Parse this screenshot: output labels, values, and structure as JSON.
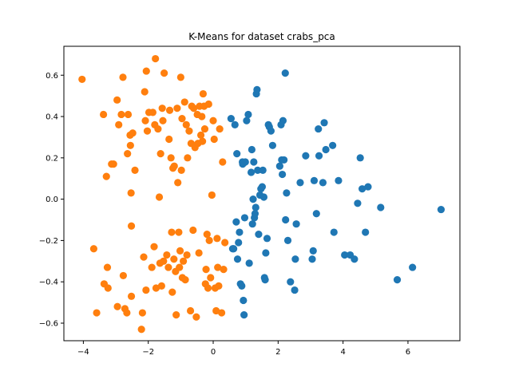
{
  "chart_data": {
    "type": "scatter",
    "title": "K-Means for dataset crabs_pca",
    "xlabel": "",
    "ylabel": "",
    "xlim": [
      -4.6,
      7.6
    ],
    "ylim": [
      -0.685,
      0.74
    ],
    "xticks": [
      -4,
      -2,
      0,
      2,
      4,
      6
    ],
    "yticks": [
      -0.6,
      -0.4,
      -0.2,
      0.0,
      0.2,
      0.4,
      0.6
    ],
    "yticks_labels": [
      "−0.6",
      "−0.4",
      "−0.2",
      "0.0",
      "0.2",
      "0.4",
      "0.6"
    ],
    "xticks_labels": [
      "−4",
      "−2",
      "0",
      "2",
      "4",
      "6"
    ],
    "grid": false,
    "legend": "none",
    "series": [
      {
        "color": "#ff7f0e",
        "points": [
          [
            -4.04,
            0.58
          ],
          [
            -3.68,
            -0.24
          ],
          [
            -3.59,
            -0.55
          ],
          [
            -3.38,
            0.41
          ],
          [
            -3.36,
            -0.41
          ],
          [
            -3.29,
            0.11
          ],
          [
            -3.26,
            -0.33
          ],
          [
            -3.24,
            -0.43
          ],
          [
            -3.13,
            0.17
          ],
          [
            -3.07,
            0.17
          ],
          [
            -2.96,
            0.48
          ],
          [
            -2.95,
            -0.52
          ],
          [
            -2.91,
            0.36
          ],
          [
            -2.83,
            0.41
          ],
          [
            -2.78,
            0.59
          ],
          [
            -2.77,
            -0.37
          ],
          [
            -2.72,
            -0.53
          ],
          [
            -2.66,
            -0.55
          ],
          [
            -2.64,
            0.22
          ],
          [
            -2.62,
            0.41
          ],
          [
            -2.56,
            0.31
          ],
          [
            -2.55,
            0.26
          ],
          [
            -2.53,
            0.03
          ],
          [
            -2.52,
            -0.13
          ],
          [
            -2.52,
            -0.47
          ],
          [
            -2.48,
            0.32
          ],
          [
            -2.41,
            0.14
          ],
          [
            -2.21,
            -0.63
          ],
          [
            -2.18,
            -0.55
          ],
          [
            -2.14,
            -0.28
          ],
          [
            -2.11,
            0.52
          ],
          [
            -2.09,
            0.38
          ],
          [
            -2.07,
            -0.44
          ],
          [
            -2.06,
            0.62
          ],
          [
            -2.03,
            0.33
          ],
          [
            -1.98,
            0.42
          ],
          [
            -1.89,
            -0.33
          ],
          [
            -1.86,
            0.42
          ],
          [
            -1.82,
            -0.23
          ],
          [
            -1.8,
            0.36
          ],
          [
            -1.78,
            0.68
          ],
          [
            -1.76,
            -0.43
          ],
          [
            -1.7,
            0.34
          ],
          [
            -1.66,
            0.01
          ],
          [
            -1.64,
            -0.31
          ],
          [
            -1.62,
            0.22
          ],
          [
            -1.59,
            -0.42
          ],
          [
            -1.57,
            0.44
          ],
          [
            -1.55,
            0.38
          ],
          [
            -1.53,
            -0.3
          ],
          [
            -1.51,
            0.61
          ],
          [
            -1.43,
            -0.27
          ],
          [
            -1.38,
            -0.33
          ],
          [
            -1.36,
            0.29
          ],
          [
            -1.34,
            0.43
          ],
          [
            -1.3,
            0.2
          ],
          [
            -1.28,
            -0.16
          ],
          [
            -1.26,
            -0.45
          ],
          [
            -1.24,
            0.15
          ],
          [
            -1.21,
            -0.29
          ],
          [
            -1.2,
            0.16
          ],
          [
            -1.16,
            -0.35
          ],
          [
            -1.14,
            -0.56
          ],
          [
            -1.11,
            0.44
          ],
          [
            -1.09,
            0.08
          ],
          [
            -1.06,
            -0.16
          ],
          [
            -1.04,
            -0.33
          ],
          [
            -1.02,
            -0.25
          ],
          [
            -1.0,
            0.59
          ],
          [
            -0.98,
            0.14
          ],
          [
            -0.96,
            0.39
          ],
          [
            -0.95,
            -0.38
          ],
          [
            -0.92,
            -0.3
          ],
          [
            -0.88,
            0.47
          ],
          [
            -0.86,
            -0.39
          ],
          [
            -0.83,
            0.36
          ],
          [
            -0.81,
            -0.27
          ],
          [
            -0.79,
            0.2
          ],
          [
            -0.74,
            0.33
          ],
          [
            -0.7,
            -0.54
          ],
          [
            -0.68,
            0.27
          ],
          [
            -0.66,
            0.45
          ],
          [
            -0.62,
            -0.15
          ],
          [
            -0.6,
            0.44
          ],
          [
            -0.56,
            0.25
          ],
          [
            -0.52,
            -0.57
          ],
          [
            -0.49,
            0.41
          ],
          [
            -0.47,
            0.27
          ],
          [
            -0.44,
            -0.26
          ],
          [
            -0.42,
            0.45
          ],
          [
            -0.38,
            0.31
          ],
          [
            -0.35,
            0.4
          ],
          [
            -0.33,
            0.28
          ],
          [
            -0.31,
            0.51
          ],
          [
            -0.28,
            0.45
          ],
          [
            -0.26,
            0.34
          ],
          [
            -0.24,
            -0.41
          ],
          [
            -0.22,
            -0.34
          ],
          [
            -0.19,
            -0.17
          ],
          [
            -0.16,
            -0.43
          ],
          [
            -0.14,
            0.46
          ],
          [
            -0.12,
            -0.2
          ],
          [
            -0.08,
            -0.38
          ],
          [
            -0.04,
            0.02
          ],
          [
            0.0,
            0.38
          ],
          [
            0.03,
            0.29
          ],
          [
            0.06,
            -0.43
          ],
          [
            0.09,
            -0.54
          ],
          [
            0.12,
            -0.19
          ],
          [
            0.14,
            -0.33
          ],
          [
            0.17,
            -0.42
          ],
          [
            0.2,
            0.34
          ],
          [
            0.26,
            -0.55
          ],
          [
            0.29,
            0.18
          ],
          [
            0.32,
            -0.34
          ],
          [
            0.36,
            -0.21
          ]
        ]
      },
      {
        "color": "#1f77b4",
        "points": [
          [
            0.55,
            0.39
          ],
          [
            0.6,
            -0.24
          ],
          [
            0.63,
            -0.24
          ],
          [
            0.67,
            0.36
          ],
          [
            0.71,
            -0.11
          ],
          [
            0.73,
            0.22
          ],
          [
            0.75,
            -0.29
          ],
          [
            0.78,
            -0.21
          ],
          [
            0.81,
            -0.16
          ],
          [
            0.84,
            -0.41
          ],
          [
            0.88,
            -0.42
          ],
          [
            0.9,
            0.18
          ],
          [
            0.91,
            0.17
          ],
          [
            0.93,
            -0.49
          ],
          [
            0.95,
            -0.56
          ],
          [
            0.97,
            -0.09
          ],
          [
            0.99,
            0.18
          ],
          [
            1.03,
            0.38
          ],
          [
            1.08,
            0.41
          ],
          [
            1.11,
            -0.31
          ],
          [
            1.17,
            0.13
          ],
          [
            1.19,
            0.24
          ],
          [
            1.21,
            -0.12
          ],
          [
            1.23,
            0.0
          ],
          [
            1.25,
            0.18
          ],
          [
            1.27,
            -0.09
          ],
          [
            1.29,
            -0.07
          ],
          [
            1.31,
            -0.04
          ],
          [
            1.33,
            0.51
          ],
          [
            1.35,
            0.53
          ],
          [
            1.37,
            0.14
          ],
          [
            1.4,
            -0.17
          ],
          [
            1.44,
            0.02
          ],
          [
            1.47,
            0.05
          ],
          [
            1.51,
            0.06
          ],
          [
            1.53,
            0.14
          ],
          [
            1.56,
            0.01
          ],
          [
            1.58,
            -0.38
          ],
          [
            1.6,
            -0.39
          ],
          [
            1.62,
            -0.26
          ],
          [
            1.66,
            -0.19
          ],
          [
            1.7,
            0.36
          ],
          [
            1.73,
            0.35
          ],
          [
            1.78,
            0.33
          ],
          [
            1.83,
            0.26
          ],
          [
            2.05,
            0.16
          ],
          [
            2.09,
            0.36
          ],
          [
            2.11,
            0.19
          ],
          [
            2.13,
            0.12
          ],
          [
            2.15,
            0.38
          ],
          [
            2.18,
            0.19
          ],
          [
            2.22,
            0.61
          ],
          [
            2.23,
            -0.1
          ],
          [
            2.26,
            0.03
          ],
          [
            2.3,
            -0.2
          ],
          [
            2.38,
            -0.4
          ],
          [
            2.51,
            -0.44
          ],
          [
            2.53,
            -0.29
          ],
          [
            2.56,
            -0.12
          ],
          [
            2.68,
            0.08
          ],
          [
            2.85,
            0.21
          ],
          [
            3.05,
            -0.29
          ],
          [
            3.08,
            -0.25
          ],
          [
            3.11,
            0.09
          ],
          [
            3.18,
            -0.07
          ],
          [
            3.24,
            0.34
          ],
          [
            3.26,
            0.21
          ],
          [
            3.38,
            0.08
          ],
          [
            3.42,
            0.37
          ],
          [
            3.47,
            0.24
          ],
          [
            3.68,
            0.26
          ],
          [
            3.72,
            -0.16
          ],
          [
            3.86,
            0.09
          ],
          [
            4.05,
            -0.27
          ],
          [
            4.22,
            -0.27
          ],
          [
            4.35,
            -0.29
          ],
          [
            4.45,
            -0.02
          ],
          [
            4.53,
            0.2
          ],
          [
            4.59,
            0.05
          ],
          [
            4.69,
            -0.16
          ],
          [
            4.77,
            0.06
          ],
          [
            5.16,
            -0.04
          ],
          [
            5.67,
            -0.39
          ],
          [
            6.14,
            -0.33
          ],
          [
            7.02,
            -0.05
          ]
        ]
      }
    ]
  }
}
